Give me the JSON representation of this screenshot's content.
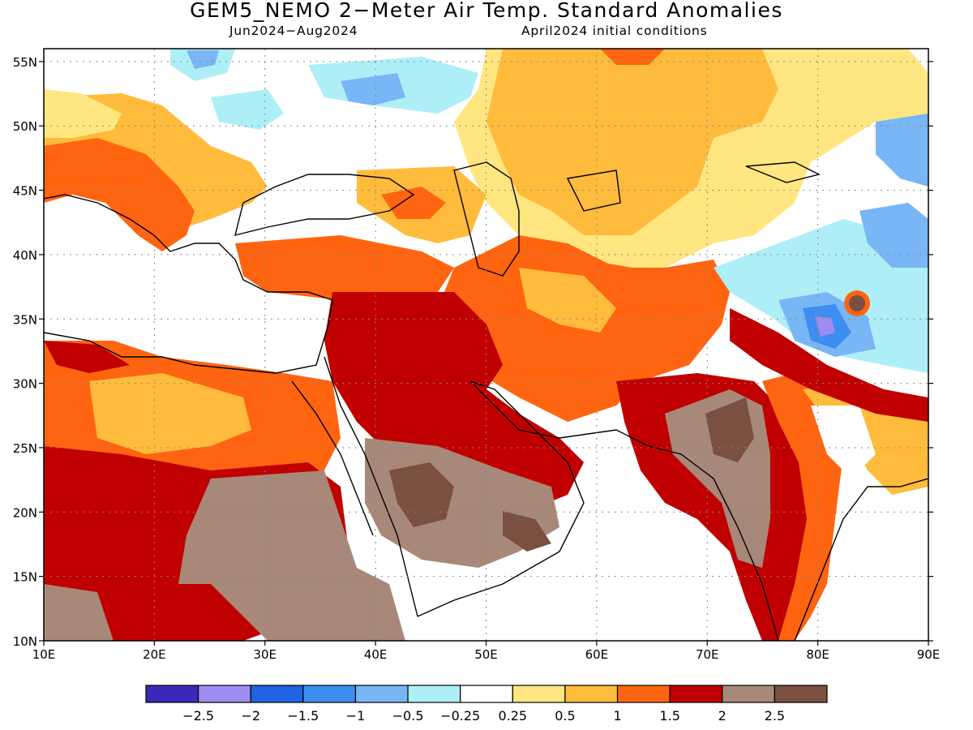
{
  "header": {
    "title": "GEM5_NEMO 2−Meter Air Temp. Standard Anomalies",
    "period": "Jun2024−Aug2024",
    "init": "April2024 initial conditions"
  },
  "map": {
    "lon_range": [
      10,
      90
    ],
    "lat_range": [
      10,
      56
    ],
    "lon_ticks": [
      {
        "v": 10,
        "label": "10E"
      },
      {
        "v": 20,
        "label": "20E"
      },
      {
        "v": 30,
        "label": "30E"
      },
      {
        "v": 40,
        "label": "40E"
      },
      {
        "v": 50,
        "label": "50E"
      },
      {
        "v": 60,
        "label": "60E"
      },
      {
        "v": 70,
        "label": "70E"
      },
      {
        "v": 80,
        "label": "80E"
      },
      {
        "v": 90,
        "label": "90E"
      }
    ],
    "lat_ticks": [
      {
        "v": 10,
        "label": "10N"
      },
      {
        "v": 15,
        "label": "15N"
      },
      {
        "v": 20,
        "label": "20N"
      },
      {
        "v": 25,
        "label": "25N"
      },
      {
        "v": 30,
        "label": "30N"
      },
      {
        "v": 35,
        "label": "35N"
      },
      {
        "v": 40,
        "label": "40N"
      },
      {
        "v": 45,
        "label": "45N"
      },
      {
        "v": 50,
        "label": "50N"
      },
      {
        "v": 55,
        "label": "55N"
      }
    ],
    "gridlines": "dotted"
  },
  "legend": {
    "colors": [
      "#3a28b8",
      "#9f8cf2",
      "#1f64e0",
      "#3d8ef0",
      "#78b6f5",
      "#aeeef7",
      "#ffffff",
      "#ffe680",
      "#ffbb3c",
      "#ff6410",
      "#c00000",
      "#a88878",
      "#7a5040"
    ],
    "labels": [
      "−2.5",
      "−2",
      "−1.5",
      "−1",
      "−0.5",
      "−0.25",
      "0.25",
      "0.5",
      "1",
      "1.5",
      "2",
      "2.5"
    ]
  }
}
